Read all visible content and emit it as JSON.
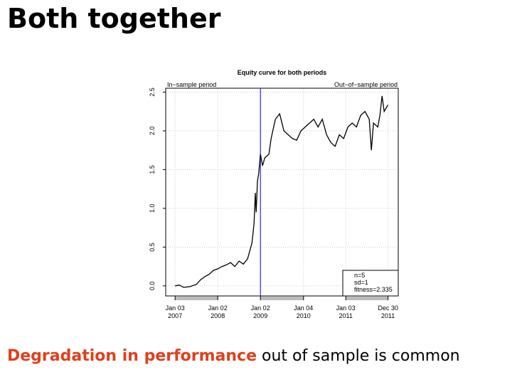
{
  "header": {
    "title": "Both together"
  },
  "chart_data": {
    "type": "line",
    "title": "Equity curve for both periods",
    "annotations": [
      "In−sample period",
      "Out−of−sample period"
    ],
    "legend_lines": [
      "n=5",
      "sd=1",
      "fitness=2.335"
    ],
    "legend_position": "bottom-right",
    "divider_x": 2009.0,
    "divider_color": "#0000ff",
    "color": "#000000",
    "grid": true,
    "x": [
      2007.0,
      2007.1,
      2007.2,
      2007.35,
      2007.5,
      2007.6,
      2007.7,
      2007.8,
      2007.9,
      2008.0,
      2008.1,
      2008.2,
      2008.3,
      2008.4,
      2008.5,
      2008.6,
      2008.7,
      2008.75,
      2008.8,
      2008.85,
      2008.88,
      2008.9,
      2008.93,
      2008.96,
      2009.0,
      2009.05,
      2009.1,
      2009.2,
      2009.25,
      2009.35,
      2009.45,
      2009.55,
      2009.65,
      2009.75,
      2009.85,
      2009.95,
      2010.05,
      2010.15,
      2010.25,
      2010.35,
      2010.45,
      2010.55,
      2010.65,
      2010.75,
      2010.85,
      2010.95,
      2011.05,
      2011.15,
      2011.25,
      2011.35,
      2011.45,
      2011.55,
      2011.6,
      2011.65,
      2011.75,
      2011.8,
      2011.85,
      2011.9,
      2011.99
    ],
    "values": [
      0.0,
      0.01,
      -0.02,
      -0.01,
      0.02,
      0.08,
      0.12,
      0.15,
      0.2,
      0.22,
      0.25,
      0.27,
      0.3,
      0.25,
      0.32,
      0.28,
      0.35,
      0.45,
      0.55,
      0.8,
      1.2,
      0.95,
      1.35,
      1.45,
      1.7,
      1.55,
      1.65,
      1.7,
      1.9,
      2.15,
      2.22,
      2.0,
      1.95,
      1.9,
      1.88,
      2.0,
      2.05,
      2.1,
      2.15,
      2.05,
      2.15,
      1.95,
      1.85,
      1.8,
      1.95,
      1.9,
      2.05,
      2.1,
      2.05,
      2.2,
      2.25,
      2.15,
      1.75,
      2.1,
      2.05,
      2.2,
      2.45,
      2.25,
      2.335
    ],
    "xlim": [
      2006.78,
      2012.23
    ],
    "ylim": [
      -0.13,
      2.55
    ],
    "xticks": [
      {
        "value": 2007.0,
        "label": "Jan 03\n2007"
      },
      {
        "value": 2008.0,
        "label": "Jan 02\n2008"
      },
      {
        "value": 2009.0,
        "label": "Jan 02\n2009"
      },
      {
        "value": 2010.01,
        "label": "Jan 04\n2010"
      },
      {
        "value": 2011.0,
        "label": "Jan 03\n2011"
      },
      {
        "value": 2011.99,
        "label": "Dec 30\n2011"
      }
    ],
    "yticks": [
      {
        "value": 0,
        "label": "0.0"
      },
      {
        "value": 0.5,
        "label": "0.5"
      },
      {
        "value": 1,
        "label": "1.0"
      },
      {
        "value": 1.5,
        "label": "1.5"
      },
      {
        "value": 2,
        "label": "2.0"
      },
      {
        "value": 2.5,
        "label": "2.5"
      }
    ]
  },
  "footer": {
    "highlight": "Degradation in performance",
    "text": "out of sample is common"
  }
}
